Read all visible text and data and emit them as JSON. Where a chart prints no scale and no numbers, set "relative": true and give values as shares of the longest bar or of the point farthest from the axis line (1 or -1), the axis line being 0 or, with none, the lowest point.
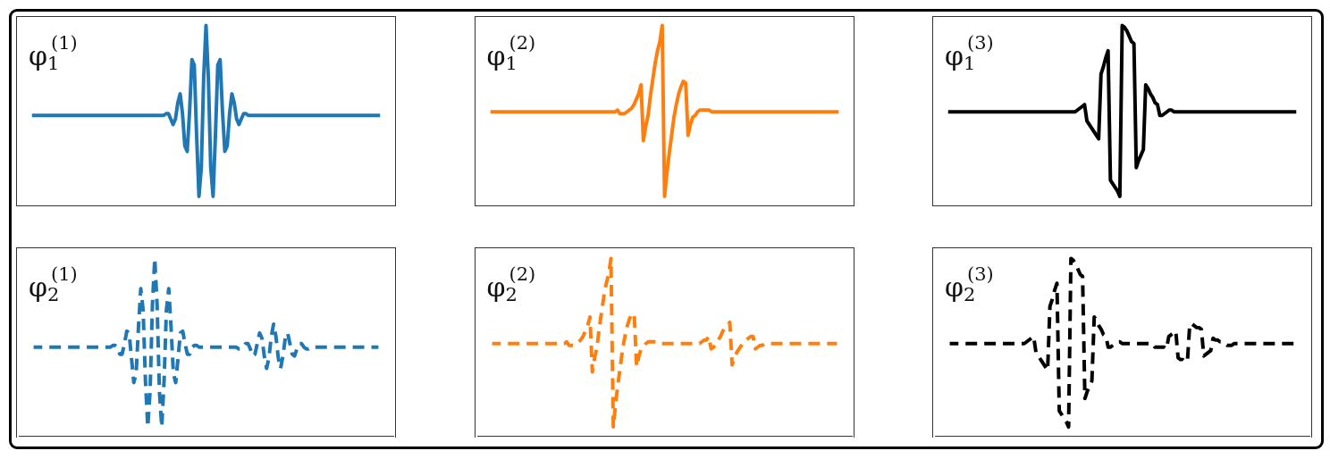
{
  "chart_data": [
    {
      "type": "line",
      "annotations": [
        "φ$_{1}$$^{(1)}$"
      ],
      "relative": true,
      "line_style": "solid",
      "color": "#1f77b4",
      "categories": [
        null,
        null,
        null,
        null,
        null,
        null,
        null,
        null,
        null,
        null,
        null,
        null,
        null,
        null,
        null,
        null,
        null,
        null,
        null,
        null,
        null,
        null,
        null,
        null,
        null,
        null,
        null,
        null,
        null,
        null,
        null,
        null,
        null,
        null,
        null,
        null,
        null,
        null,
        null,
        null,
        null,
        null,
        null,
        null,
        null,
        null,
        null,
        null,
        null,
        null,
        null,
        null,
        null,
        null,
        null,
        null,
        null,
        null,
        null,
        null,
        null,
        null,
        null,
        null,
        null,
        null,
        null,
        null,
        null,
        null,
        null,
        null,
        null,
        null,
        null,
        null,
        null,
        null,
        null,
        null,
        null,
        null,
        null,
        null,
        null,
        null,
        null,
        null,
        null,
        null,
        null,
        null,
        null,
        null,
        null,
        null,
        null,
        null,
        null,
        null,
        null,
        null,
        null,
        null,
        null,
        null,
        null,
        null,
        null,
        null,
        null,
        null,
        null,
        null,
        null,
        null,
        null,
        null,
        null,
        null,
        null,
        null,
        null,
        null,
        null,
        null,
        null,
        null,
        null,
        null,
        null,
        null,
        null,
        null,
        null,
        null,
        null,
        null,
        null,
        null,
        null,
        null,
        null,
        null,
        null,
        null,
        null,
        null,
        null
      ],
      "values": [
        0.5,
        0.5,
        0.5,
        0.5,
        0.5,
        0.5,
        0.5,
        0.5,
        0.5,
        0.5,
        0.5,
        0.5,
        0.5,
        0.5,
        0.5,
        0.5,
        0.5,
        0.5,
        0.5,
        0.5,
        0.5,
        0.5,
        0.5,
        0.5,
        0.5,
        0.5,
        0.5,
        0.5,
        0.5,
        0.5,
        0.5,
        0.5,
        0.5,
        0.5,
        0.5,
        0.5,
        0.5,
        0.5,
        0.5,
        0.5,
        0.5,
        0.5,
        0.5,
        0.5,
        0.5,
        0.5,
        0.5,
        0.5,
        0.5,
        0.5,
        0.5,
        0.5,
        0.5,
        0.5,
        0.5,
        0.5,
        0.5,
        0.51,
        0.51,
        0.48,
        0.45,
        0.48,
        0.57,
        0.62,
        0.51,
        0.33,
        0.3,
        0.52,
        0.81,
        0.78,
        0.39,
        0.05,
        0.21,
        0.71,
        1.0,
        0.71,
        0.21,
        0.05,
        0.39,
        0.78,
        0.81,
        0.52,
        0.3,
        0.33,
        0.51,
        0.62,
        0.57,
        0.48,
        0.45,
        0.48,
        0.51,
        0.51,
        0.5,
        0.5,
        0.5,
        0.5,
        0.5,
        0.5,
        0.5,
        0.5,
        0.5,
        0.5,
        0.5,
        0.5,
        0.5,
        0.5,
        0.5,
        0.5,
        0.5,
        0.5,
        0.5,
        0.5,
        0.5,
        0.5,
        0.5,
        0.5,
        0.5,
        0.5,
        0.5,
        0.5,
        0.5,
        0.5,
        0.5,
        0.5,
        0.5,
        0.5,
        0.5,
        0.5,
        0.5,
        0.5,
        0.5,
        0.5,
        0.5,
        0.5,
        0.5,
        0.5,
        0.5,
        0.5,
        0.5,
        0.5,
        0.5,
        0.5,
        0.5,
        0.5,
        0.5,
        0.5,
        0.5,
        0.5,
        0.5
      ]
    },
    {
      "type": "line",
      "annotations": [
        "φ$_{1}$$^{(2)}$"
      ],
      "relative": true,
      "line_style": "solid",
      "color": "#ff7f0e",
      "categories": [
        null,
        null,
        null,
        null,
        null,
        null,
        null,
        null,
        null,
        null,
        null,
        null,
        null,
        null,
        null,
        null,
        null,
        null,
        null,
        null,
        null,
        null,
        null,
        null,
        null,
        null,
        null,
        null,
        null,
        null,
        null,
        null,
        null,
        null,
        null,
        null,
        null,
        null,
        null,
        null,
        null,
        null,
        null,
        null,
        null,
        null,
        null,
        null,
        null,
        null,
        null,
        null,
        null,
        null,
        null,
        null,
        null,
        null,
        null,
        null,
        null,
        null,
        null,
        null,
        null,
        null,
        null,
        null,
        null,
        null,
        null,
        null,
        null,
        null,
        null,
        null,
        null,
        null,
        null,
        null,
        null,
        null,
        null,
        null,
        null,
        null,
        null,
        null,
        null,
        null,
        null,
        null,
        null,
        null,
        null,
        null,
        null,
        null,
        null,
        null,
        null,
        null,
        null,
        null,
        null,
        null,
        null,
        null,
        null,
        null,
        null,
        null,
        null,
        null,
        null,
        null,
        null,
        null,
        null,
        null,
        null,
        null,
        null,
        null,
        null,
        null,
        null,
        null,
        null,
        null,
        null,
        null,
        null,
        null,
        null,
        null,
        null,
        null,
        null,
        null,
        null,
        null,
        null,
        null,
        null,
        null,
        null,
        null,
        null
      ],
      "values": [
        0.52,
        0.52,
        0.52,
        0.52,
        0.52,
        0.52,
        0.52,
        0.52,
        0.52,
        0.52,
        0.52,
        0.52,
        0.52,
        0.52,
        0.52,
        0.52,
        0.52,
        0.52,
        0.52,
        0.52,
        0.52,
        0.52,
        0.52,
        0.52,
        0.52,
        0.52,
        0.52,
        0.52,
        0.52,
        0.52,
        0.52,
        0.52,
        0.52,
        0.52,
        0.52,
        0.52,
        0.52,
        0.52,
        0.52,
        0.52,
        0.52,
        0.52,
        0.52,
        0.52,
        0.52,
        0.52,
        0.52,
        0.52,
        0.52,
        0.52,
        0.52,
        0.52,
        0.52,
        0.52,
        0.53,
        0.51,
        0.51,
        0.51,
        0.52,
        0.53,
        0.54,
        0.56,
        0.59,
        0.62,
        0.67,
        0.36,
        0.44,
        0.5,
        0.61,
        0.7,
        0.79,
        0.86,
        0.91,
        1.0,
        0.05,
        0.18,
        0.29,
        0.39,
        0.49,
        0.56,
        0.62,
        0.66,
        0.69,
        0.68,
        0.39,
        0.45,
        0.49,
        0.5,
        0.52,
        0.53,
        0.53,
        0.53,
        0.53,
        0.53,
        0.52,
        0.52,
        0.52,
        0.52,
        0.52,
        0.52,
        0.52,
        0.52,
        0.52,
        0.52,
        0.52,
        0.52,
        0.52,
        0.52,
        0.52,
        0.52,
        0.52,
        0.52,
        0.52,
        0.52,
        0.52,
        0.52,
        0.52,
        0.52,
        0.52,
        0.52,
        0.52,
        0.52,
        0.52,
        0.52,
        0.52,
        0.52,
        0.52,
        0.52,
        0.52,
        0.52,
        0.52,
        0.52,
        0.52,
        0.52,
        0.52,
        0.52,
        0.52,
        0.52,
        0.52,
        0.52,
        0.52,
        0.52,
        0.52,
        0.52,
        0.52,
        0.52,
        0.52,
        0.52,
        0.52
      ]
    },
    {
      "type": "line",
      "annotations": [
        "φ$_{1}$$^{(3)}$"
      ],
      "relative": true,
      "line_style": "solid",
      "color": "#000000",
      "categories": [
        null,
        null,
        null,
        null,
        null,
        null,
        null,
        null,
        null,
        null,
        null,
        null,
        null,
        null,
        null,
        null,
        null,
        null,
        null,
        null,
        null,
        null,
        null,
        null,
        null,
        null,
        null,
        null,
        null,
        null,
        null,
        null,
        null,
        null,
        null,
        null,
        null,
        null,
        null,
        null,
        null,
        null,
        null,
        null,
        null,
        null,
        null,
        null,
        null,
        null,
        null,
        null,
        null,
        null,
        null,
        null,
        null,
        null,
        null,
        null,
        null,
        null,
        null,
        null,
        null,
        null,
        null,
        null,
        null,
        null,
        null,
        null,
        null,
        null,
        null,
        null,
        null,
        null,
        null,
        null,
        null,
        null,
        null,
        null,
        null,
        null,
        null,
        null,
        null,
        null,
        null,
        null,
        null,
        null,
        null,
        null,
        null,
        null,
        null,
        null,
        null,
        null,
        null,
        null,
        null,
        null,
        null,
        null,
        null,
        null,
        null,
        null,
        null,
        null,
        null,
        null,
        null,
        null,
        null,
        null,
        null,
        null,
        null,
        null,
        null,
        null,
        null,
        null,
        null,
        null,
        null,
        null,
        null,
        null,
        null,
        null,
        null,
        null,
        null,
        null,
        null,
        null,
        null,
        null,
        null,
        null,
        null,
        null,
        null
      ],
      "values": [
        0.52,
        0.52,
        0.52,
        0.52,
        0.52,
        0.52,
        0.52,
        0.52,
        0.52,
        0.52,
        0.52,
        0.52,
        0.52,
        0.52,
        0.52,
        0.52,
        0.52,
        0.52,
        0.52,
        0.52,
        0.52,
        0.52,
        0.52,
        0.52,
        0.52,
        0.52,
        0.52,
        0.52,
        0.52,
        0.52,
        0.52,
        0.52,
        0.52,
        0.52,
        0.52,
        0.52,
        0.52,
        0.52,
        0.52,
        0.52,
        0.52,
        0.52,
        0.52,
        0.52,
        0.52,
        0.52,
        0.52,
        0.52,
        0.52,
        0.52,
        0.52,
        0.52,
        0.52,
        0.52,
        0.52,
        0.53,
        0.54,
        0.55,
        0.56,
        0.47,
        0.45,
        0.43,
        0.41,
        0.39,
        0.37,
        0.73,
        0.77,
        0.82,
        0.86,
        0.14,
        0.12,
        0.1,
        0.08,
        0.05,
        1.0,
        0.99,
        0.97,
        0.94,
        0.91,
        0.9,
        0.21,
        0.25,
        0.28,
        0.31,
        0.67,
        0.65,
        0.62,
        0.6,
        0.57,
        0.56,
        0.5,
        0.5,
        0.51,
        0.52,
        0.53,
        0.53,
        0.52,
        0.52,
        0.52,
        0.52,
        0.52,
        0.52,
        0.52,
        0.52,
        0.52,
        0.52,
        0.52,
        0.52,
        0.52,
        0.52,
        0.52,
        0.52,
        0.52,
        0.52,
        0.52,
        0.52,
        0.52,
        0.52,
        0.52,
        0.52,
        0.52,
        0.52,
        0.52,
        0.52,
        0.52,
        0.52,
        0.52,
        0.52,
        0.52,
        0.52,
        0.52,
        0.52,
        0.52,
        0.52,
        0.52,
        0.52,
        0.52,
        0.52,
        0.52,
        0.52,
        0.52,
        0.52,
        0.52,
        0.52,
        0.52,
        0.52,
        0.52,
        0.52,
        0.52
      ]
    },
    {
      "type": "line",
      "annotations": [
        "φ$_{2}$$^{(1)}$"
      ],
      "relative": true,
      "line_style": "dashed",
      "color": "#1f77b4",
      "categories": [
        null,
        null,
        null,
        null,
        null,
        null,
        null,
        null,
        null,
        null,
        null,
        null,
        null,
        null,
        null,
        null,
        null,
        null,
        null,
        null,
        null,
        null,
        null,
        null,
        null,
        null,
        null,
        null,
        null,
        null,
        null,
        null,
        null,
        null,
        null,
        null,
        null,
        null,
        null,
        null,
        null,
        null,
        null,
        null,
        null,
        null,
        null,
        null,
        null,
        null,
        null,
        null,
        null,
        null,
        null,
        null,
        null,
        null,
        null,
        null,
        null,
        null,
        null,
        null,
        null,
        null,
        null,
        null,
        null,
        null,
        null,
        null,
        null,
        null,
        null,
        null,
        null,
        null,
        null,
        null,
        null,
        null,
        null,
        null,
        null,
        null,
        null,
        null,
        null,
        null,
        null,
        null,
        null,
        null,
        null,
        null,
        null,
        null,
        null,
        null,
        null,
        null,
        null,
        null,
        null,
        null,
        null,
        null,
        null,
        null,
        null,
        null,
        null,
        null,
        null,
        null,
        null,
        null,
        null,
        null,
        null,
        null,
        null,
        null,
        null,
        null,
        null,
        null,
        null,
        null,
        null,
        null,
        null,
        null,
        null,
        null,
        null,
        null,
        null,
        null,
        null,
        null,
        null,
        null,
        null,
        null,
        null,
        null,
        null
      ],
      "values": [
        0.5,
        0.5,
        0.5,
        0.5,
        0.5,
        0.5,
        0.5,
        0.5,
        0.5,
        0.5,
        0.5,
        0.5,
        0.5,
        0.5,
        0.5,
        0.5,
        0.5,
        0.5,
        0.5,
        0.5,
        0.5,
        0.5,
        0.5,
        0.5,
        0.5,
        0.5,
        0.5,
        0.5,
        0.5,
        0.5,
        0.5,
        0.5,
        0.5,
        0.5,
        0.51,
        0.51,
        0.5,
        0.46,
        0.46,
        0.52,
        0.59,
        0.58,
        0.44,
        0.3,
        0.35,
        0.61,
        0.83,
        0.71,
        0.31,
        0.05,
        0.25,
        0.74,
        1.0,
        0.74,
        0.25,
        0.05,
        0.31,
        0.71,
        0.83,
        0.61,
        0.35,
        0.3,
        0.44,
        0.58,
        0.59,
        0.52,
        0.46,
        0.46,
        0.5,
        0.51,
        0.51,
        0.5,
        0.5,
        0.5,
        0.5,
        0.5,
        0.5,
        0.5,
        0.5,
        0.5,
        0.5,
        0.5,
        0.5,
        0.5,
        0.5,
        0.5,
        0.5,
        0.5,
        0.49,
        0.49,
        0.5,
        0.52,
        0.52,
        0.49,
        0.45,
        0.46,
        0.52,
        0.58,
        0.55,
        0.45,
        0.38,
        0.44,
        0.56,
        0.63,
        0.56,
        0.44,
        0.38,
        0.45,
        0.55,
        0.58,
        0.52,
        0.46,
        0.45,
        0.49,
        0.52,
        0.52,
        0.5,
        0.49,
        0.49,
        0.5,
        0.5,
        0.5,
        0.5,
        0.5,
        0.5,
        0.5,
        0.5,
        0.5,
        0.5,
        0.5,
        0.5,
        0.5,
        0.5,
        0.5,
        0.5,
        0.5,
        0.5,
        0.5,
        0.5,
        0.5,
        0.5,
        0.5,
        0.5,
        0.5,
        0.5,
        0.5,
        0.5,
        0.5,
        0.5
      ]
    },
    {
      "type": "line",
      "annotations": [
        "φ$_{2}$$^{(2)}$"
      ],
      "relative": true,
      "line_style": "dashed",
      "color": "#ff7f0e",
      "categories": [
        null,
        null,
        null,
        null,
        null,
        null,
        null,
        null,
        null,
        null,
        null,
        null,
        null,
        null,
        null,
        null,
        null,
        null,
        null,
        null,
        null,
        null,
        null,
        null,
        null,
        null,
        null,
        null,
        null,
        null,
        null,
        null,
        null,
        null,
        null,
        null,
        null,
        null,
        null,
        null,
        null,
        null,
        null,
        null,
        null,
        null,
        null,
        null,
        null,
        null,
        null,
        null,
        null,
        null,
        null,
        null,
        null,
        null,
        null,
        null,
        null,
        null,
        null,
        null,
        null,
        null,
        null,
        null,
        null,
        null,
        null,
        null,
        null,
        null,
        null,
        null,
        null,
        null,
        null,
        null,
        null,
        null,
        null,
        null,
        null,
        null,
        null,
        null,
        null,
        null,
        null,
        null,
        null,
        null,
        null,
        null,
        null,
        null,
        null,
        null,
        null,
        null,
        null,
        null,
        null,
        null,
        null,
        null,
        null,
        null,
        null,
        null,
        null,
        null,
        null,
        null,
        null,
        null,
        null,
        null,
        null,
        null,
        null,
        null,
        null,
        null,
        null,
        null,
        null,
        null,
        null,
        null,
        null,
        null,
        null,
        null,
        null,
        null,
        null,
        null,
        null,
        null,
        null,
        null,
        null,
        null,
        null,
        null,
        null
      ],
      "values": [
        0.52,
        0.52,
        0.52,
        0.52,
        0.52,
        0.52,
        0.52,
        0.52,
        0.52,
        0.52,
        0.52,
        0.52,
        0.52,
        0.52,
        0.52,
        0.52,
        0.52,
        0.52,
        0.52,
        0.52,
        0.52,
        0.52,
        0.52,
        0.52,
        0.52,
        0.52,
        0.52,
        0.52,
        0.52,
        0.52,
        0.52,
        0.52,
        0.53,
        0.51,
        0.51,
        0.51,
        0.52,
        0.53,
        0.54,
        0.56,
        0.59,
        0.62,
        0.67,
        0.36,
        0.44,
        0.5,
        0.61,
        0.7,
        0.79,
        0.86,
        0.91,
        1.0,
        0.05,
        0.18,
        0.29,
        0.39,
        0.49,
        0.56,
        0.62,
        0.66,
        0.69,
        0.68,
        0.39,
        0.45,
        0.49,
        0.5,
        0.52,
        0.53,
        0.53,
        0.53,
        0.53,
        0.53,
        0.52,
        0.52,
        0.52,
        0.52,
        0.52,
        0.52,
        0.52,
        0.52,
        0.52,
        0.52,
        0.52,
        0.52,
        0.52,
        0.52,
        0.52,
        0.52,
        0.52,
        0.52,
        0.53,
        0.54,
        0.54,
        0.56,
        0.49,
        0.5,
        0.51,
        0.54,
        0.56,
        0.59,
        0.61,
        0.62,
        0.64,
        0.4,
        0.44,
        0.47,
        0.49,
        0.51,
        0.53,
        0.54,
        0.55,
        0.56,
        0.56,
        0.49,
        0.5,
        0.51,
        0.51,
        0.52,
        0.52,
        0.52,
        0.52,
        0.52,
        0.52,
        0.52,
        0.52,
        0.52,
        0.52,
        0.52,
        0.52,
        0.52,
        0.52,
        0.52,
        0.52,
        0.52,
        0.52,
        0.52,
        0.52,
        0.52,
        0.52,
        0.52,
        0.52,
        0.52,
        0.52,
        0.52,
        0.52,
        0.52,
        0.52,
        0.52,
        0.52
      ]
    },
    {
      "type": "line",
      "annotations": [
        "φ$_{2}$$^{(3)}$"
      ],
      "relative": true,
      "line_style": "dashed",
      "color": "#000000",
      "categories": [
        null,
        null,
        null,
        null,
        null,
        null,
        null,
        null,
        null,
        null,
        null,
        null,
        null,
        null,
        null,
        null,
        null,
        null,
        null,
        null,
        null,
        null,
        null,
        null,
        null,
        null,
        null,
        null,
        null,
        null,
        null,
        null,
        null,
        null,
        null,
        null,
        null,
        null,
        null,
        null,
        null,
        null,
        null,
        null,
        null,
        null,
        null,
        null,
        null,
        null,
        null,
        null,
        null,
        null,
        null,
        null,
        null,
        null,
        null,
        null,
        null,
        null,
        null,
        null,
        null,
        null,
        null,
        null,
        null,
        null,
        null,
        null,
        null,
        null,
        null,
        null,
        null,
        null,
        null,
        null,
        null,
        null,
        null,
        null,
        null,
        null,
        null,
        null,
        null,
        null,
        null,
        null,
        null,
        null,
        null,
        null,
        null,
        null,
        null,
        null,
        null,
        null,
        null,
        null,
        null,
        null,
        null,
        null,
        null,
        null,
        null,
        null,
        null,
        null,
        null,
        null,
        null,
        null,
        null,
        null,
        null,
        null,
        null,
        null,
        null,
        null,
        null,
        null,
        null,
        null,
        null,
        null,
        null,
        null,
        null,
        null,
        null,
        null,
        null,
        null,
        null,
        null,
        null,
        null,
        null,
        null,
        null,
        null,
        null
      ],
      "values": [
        0.52,
        0.52,
        0.52,
        0.52,
        0.52,
        0.52,
        0.52,
        0.52,
        0.52,
        0.52,
        0.52,
        0.52,
        0.52,
        0.52,
        0.52,
        0.52,
        0.52,
        0.52,
        0.52,
        0.52,
        0.52,
        0.52,
        0.52,
        0.52,
        0.52,
        0.52,
        0.52,
        0.52,
        0.52,
        0.52,
        0.52,
        0.52,
        0.52,
        0.53,
        0.54,
        0.55,
        0.56,
        0.47,
        0.45,
        0.43,
        0.41,
        0.39,
        0.37,
        0.73,
        0.77,
        0.82,
        0.86,
        0.14,
        0.12,
        0.1,
        0.08,
        0.05,
        1.0,
        0.99,
        0.97,
        0.94,
        0.91,
        0.9,
        0.21,
        0.25,
        0.28,
        0.31,
        0.67,
        0.65,
        0.62,
        0.6,
        0.57,
        0.56,
        0.5,
        0.5,
        0.51,
        0.52,
        0.53,
        0.53,
        0.52,
        0.52,
        0.52,
        0.52,
        0.52,
        0.52,
        0.52,
        0.52,
        0.52,
        0.52,
        0.52,
        0.52,
        0.52,
        0.52,
        0.5,
        0.5,
        0.5,
        0.5,
        0.5,
        0.49,
        0.56,
        0.57,
        0.58,
        0.59,
        0.44,
        0.43,
        0.43,
        0.42,
        0.42,
        0.63,
        0.63,
        0.62,
        0.61,
        0.61,
        0.6,
        0.45,
        0.46,
        0.47,
        0.48,
        0.55,
        0.54,
        0.54,
        0.53,
        0.53,
        0.52,
        0.51,
        0.51,
        0.51,
        0.52,
        0.52,
        0.52,
        0.52,
        0.52,
        0.52,
        0.52,
        0.52,
        0.52,
        0.52,
        0.52,
        0.52,
        0.52,
        0.52,
        0.52,
        0.52,
        0.52,
        0.52,
        0.52,
        0.52,
        0.52,
        0.52,
        0.52,
        0.52,
        0.52,
        0.52,
        0.52
      ]
    }
  ]
}
